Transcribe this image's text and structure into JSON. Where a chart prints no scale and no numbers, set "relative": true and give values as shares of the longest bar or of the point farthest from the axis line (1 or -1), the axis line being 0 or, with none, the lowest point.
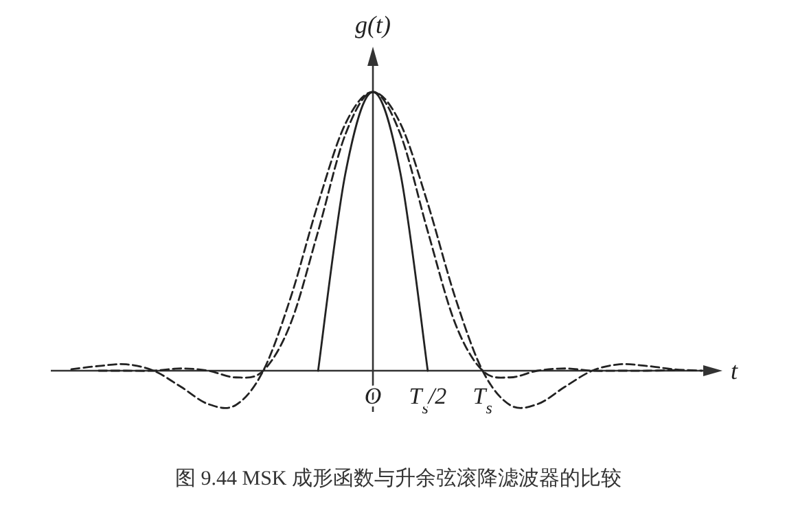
{
  "chart_data": {
    "type": "line",
    "relative": true,
    "xlabel": "t",
    "ylabel": "g(t)",
    "annotations": [
      "图 9.44 MSK 成形函数与升余弦滚降滤波器的比较"
    ],
    "categories": [
      null,
      null,
      null,
      null,
      null,
      null,
      null,
      null,
      null,
      null,
      null,
      "O",
      null,
      "T$_{s}$/2",
      null,
      "T$_{s}$",
      null,
      null,
      null,
      null,
      null,
      null,
      null,
      null
    ],
    "series": [
      {
        "color": "#222222",
        "line_style": "solid",
        "values": [
          null,
          null,
          null,
          null,
          null,
          null,
          null,
          null,
          null,
          0,
          0.71,
          1,
          0.71,
          0,
          null,
          null,
          null,
          null,
          null,
          null,
          null,
          null,
          null,
          null
        ]
      },
      {
        "color": "#222222",
        "line_style": "dashed",
        "values": [
          0.005,
          0.017,
          0.023,
          0,
          -0.058,
          -0.12,
          -0.123,
          0,
          0.263,
          0.6,
          0.887,
          1,
          0.887,
          0.6,
          0.263,
          0,
          -0.123,
          -0.12,
          -0.058,
          0,
          0.023,
          0.017,
          0.005,
          0
        ]
      },
      {
        "color": "#222222",
        "line_style": "dashed",
        "values": [
          null,
          0,
          0,
          0,
          0.008,
          0,
          -0.024,
          0,
          0.17,
          0.5,
          0.849,
          1,
          0.849,
          0.5,
          0.17,
          0,
          -0.024,
          0,
          0.008,
          0,
          0,
          0,
          0.002,
          null
        ]
      }
    ]
  }
}
